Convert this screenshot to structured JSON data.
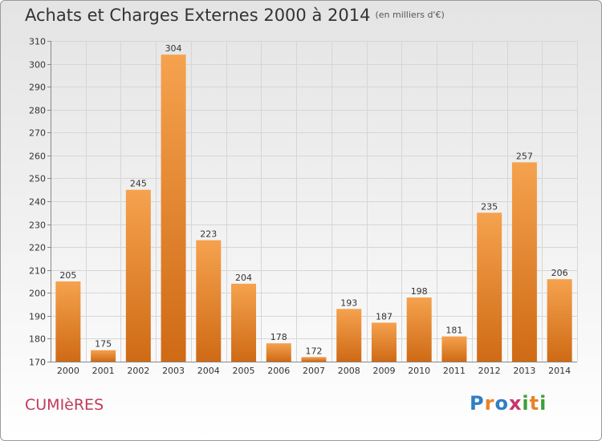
{
  "title": "Achats et Charges Externes 2000 à 2014",
  "subtitle": "(en milliers d'€)",
  "location": "CUMIèRES",
  "brand": {
    "letters": [
      "P",
      "r",
      "o",
      "x",
      "i",
      "t",
      "i"
    ],
    "colors": [
      "#2e7fc4",
      "#e9822a",
      "#3aa13a",
      "#c7356a"
    ]
  },
  "chart_data": {
    "type": "bar",
    "categories": [
      "2000",
      "2001",
      "2002",
      "2003",
      "2004",
      "2005",
      "2006",
      "2007",
      "2008",
      "2009",
      "2010",
      "2011",
      "2012",
      "2013",
      "2014"
    ],
    "values": [
      205,
      175,
      245,
      304,
      223,
      204,
      178,
      172,
      193,
      187,
      198,
      181,
      235,
      257,
      206
    ],
    "ylim": [
      170,
      310
    ],
    "yticks": [
      170,
      180,
      190,
      200,
      210,
      220,
      230,
      240,
      250,
      260,
      270,
      280,
      290,
      300,
      310
    ],
    "grid": true,
    "bar_color": "#e9822a",
    "xlabel": "",
    "ylabel": ""
  }
}
